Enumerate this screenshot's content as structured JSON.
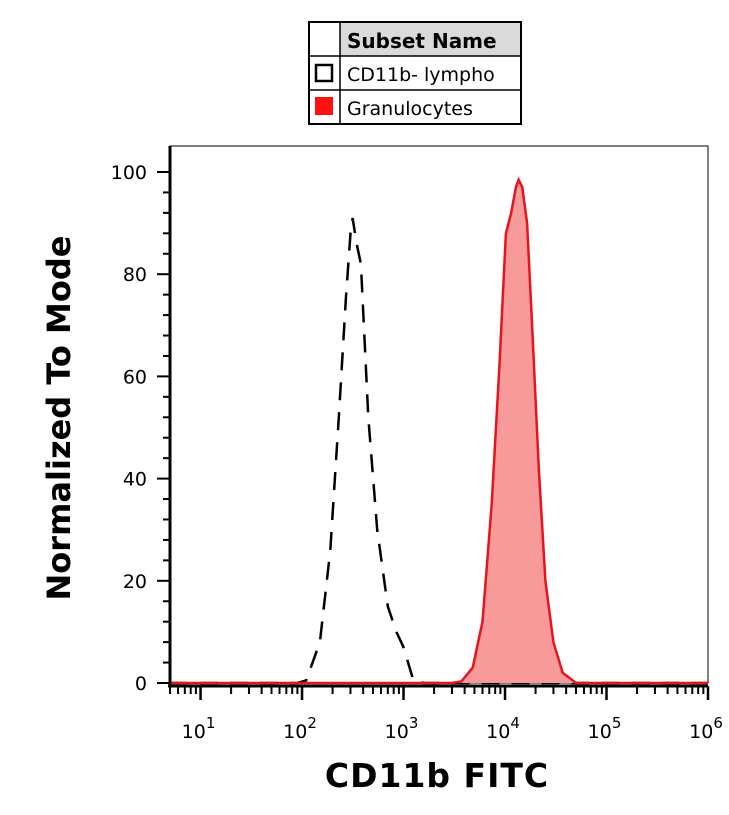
{
  "chart_data": {
    "type": "area",
    "xlabel": "CD11b FITC",
    "ylabel": "Normalized To Mode",
    "x_scale": "log",
    "xlim": [
      5,
      1000000
    ],
    "ylim": [
      0,
      100
    ],
    "y_ticks": [
      0,
      20,
      40,
      60,
      80,
      100
    ],
    "x_ticks": [
      {
        "base": "10",
        "exp": "1",
        "value": 10
      },
      {
        "base": "10",
        "exp": "2",
        "value": 100
      },
      {
        "base": "10",
        "exp": "3",
        "value": 1000
      },
      {
        "base": "10",
        "exp": "4",
        "value": 10000
      },
      {
        "base": "10",
        "exp": "5",
        "value": 100000
      },
      {
        "base": "10",
        "exp": "6",
        "value": 1000000
      }
    ],
    "grid": false,
    "legend": {
      "header": "Subset Name",
      "position": "top-center",
      "entries": [
        {
          "label": "CD11b- lympho",
          "swatch": "open-square"
        },
        {
          "label": "Granulocytes",
          "swatch": "filled-red"
        }
      ]
    },
    "series": [
      {
        "name": "CD11b- lympho",
        "style": "dashed-black",
        "color": "#000000",
        "points": [
          [
            5,
            0
          ],
          [
            90,
            0
          ],
          [
            110,
            0.5
          ],
          [
            150,
            8
          ],
          [
            190,
            26
          ],
          [
            230,
            52
          ],
          [
            270,
            75
          ],
          [
            300,
            88
          ],
          [
            315,
            91
          ],
          [
            345,
            86
          ],
          [
            380,
            82
          ],
          [
            450,
            52
          ],
          [
            550,
            30
          ],
          [
            700,
            15
          ],
          [
            850,
            10
          ],
          [
            1000,
            7
          ],
          [
            1250,
            0.5
          ],
          [
            1600,
            0
          ],
          [
            1000000,
            0
          ]
        ]
      },
      {
        "name": "Granulocytes",
        "style": "filled",
        "color": "#e8141c",
        "fill": "#f99a9a",
        "points": [
          [
            5,
            0
          ],
          [
            3000,
            0
          ],
          [
            3700,
            0.3
          ],
          [
            4800,
            3
          ],
          [
            6000,
            12
          ],
          [
            7400,
            35
          ],
          [
            8800,
            62
          ],
          [
            10200,
            88
          ],
          [
            11500,
            92
          ],
          [
            12800,
            97
          ],
          [
            13600,
            98.5
          ],
          [
            14800,
            97
          ],
          [
            16500,
            90
          ],
          [
            18500,
            70
          ],
          [
            21500,
            42
          ],
          [
            25000,
            20
          ],
          [
            30000,
            8
          ],
          [
            37000,
            2
          ],
          [
            50000,
            0
          ],
          [
            1000000,
            0
          ]
        ]
      }
    ]
  }
}
